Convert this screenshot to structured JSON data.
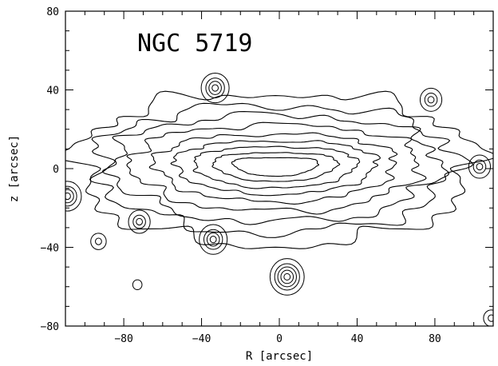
{
  "chart_data": {
    "type": "contour",
    "title": "NGC 5719",
    "xlabel": "R [arcsec]",
    "ylabel": "z [arcsec]",
    "xlim": [
      -110,
      110
    ],
    "ylim": [
      -80,
      80
    ],
    "x_ticks": [
      -80,
      -40,
      0,
      40,
      80
    ],
    "y_ticks": [
      -80,
      -40,
      0,
      40,
      80
    ],
    "x_tick_labels": [
      "−80",
      "−40",
      "0",
      "40",
      "80"
    ],
    "y_tick_labels": [
      "−80",
      "−40",
      "0",
      "40",
      "80"
    ],
    "grid": false,
    "line_color": "#000000",
    "galaxy_center": [
      -2,
      3
    ],
    "isophote_levels": [
      {
        "a": 102,
        "b": 37
      },
      {
        "a": 92,
        "b": 31
      },
      {
        "a": 84,
        "b": 26
      },
      {
        "a": 74,
        "b": 21
      },
      {
        "a": 62,
        "b": 16.5
      },
      {
        "a": 52,
        "b": 13
      },
      {
        "a": 42,
        "b": 10
      },
      {
        "a": 32,
        "b": 7
      },
      {
        "a": 22,
        "b": 4.5
      }
    ],
    "compact_sources": [
      {
        "x": -33,
        "y": 41,
        "rings": 4
      },
      {
        "x": -34,
        "y": -36,
        "rings": 4
      },
      {
        "x": -72,
        "y": -27,
        "rings": 3
      },
      {
        "x": 78,
        "y": 35,
        "rings": 3
      },
      {
        "x": 103,
        "y": 1,
        "rings": 3
      },
      {
        "x": 4,
        "y": -55,
        "rings": 5
      },
      {
        "x": -109,
        "y": -14,
        "rings": 4
      },
      {
        "x": -93,
        "y": -37,
        "rings": 2
      },
      {
        "x": 109,
        "y": -76,
        "rings": 2
      },
      {
        "x": -73,
        "y": -59,
        "rings": 1
      }
    ]
  }
}
